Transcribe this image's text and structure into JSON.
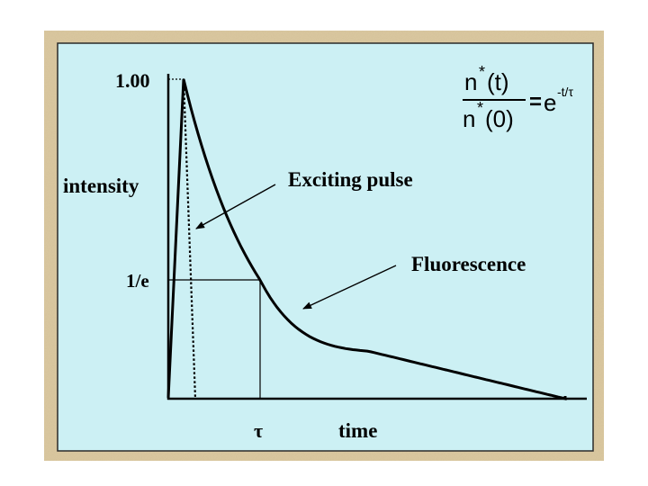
{
  "colors": {
    "frame": "#dcc9a0",
    "panel": "#ccf0f4",
    "ink": "#000000"
  },
  "y_axis": {
    "label": "intensity",
    "tick_top": "1.00",
    "tick_mid": "1/e"
  },
  "x_axis": {
    "label": "time",
    "tick": "τ"
  },
  "annotations": {
    "pulse": "Exciting pulse",
    "fluorescence": "Fluorescence"
  },
  "equation": {
    "num_base": "n",
    "num_arg": "(t)",
    "den_base": "n",
    "den_arg": "(0)",
    "star": "*",
    "equals": "=",
    "rhs_base": "e",
    "rhs_exp": "-t/τ"
  }
}
